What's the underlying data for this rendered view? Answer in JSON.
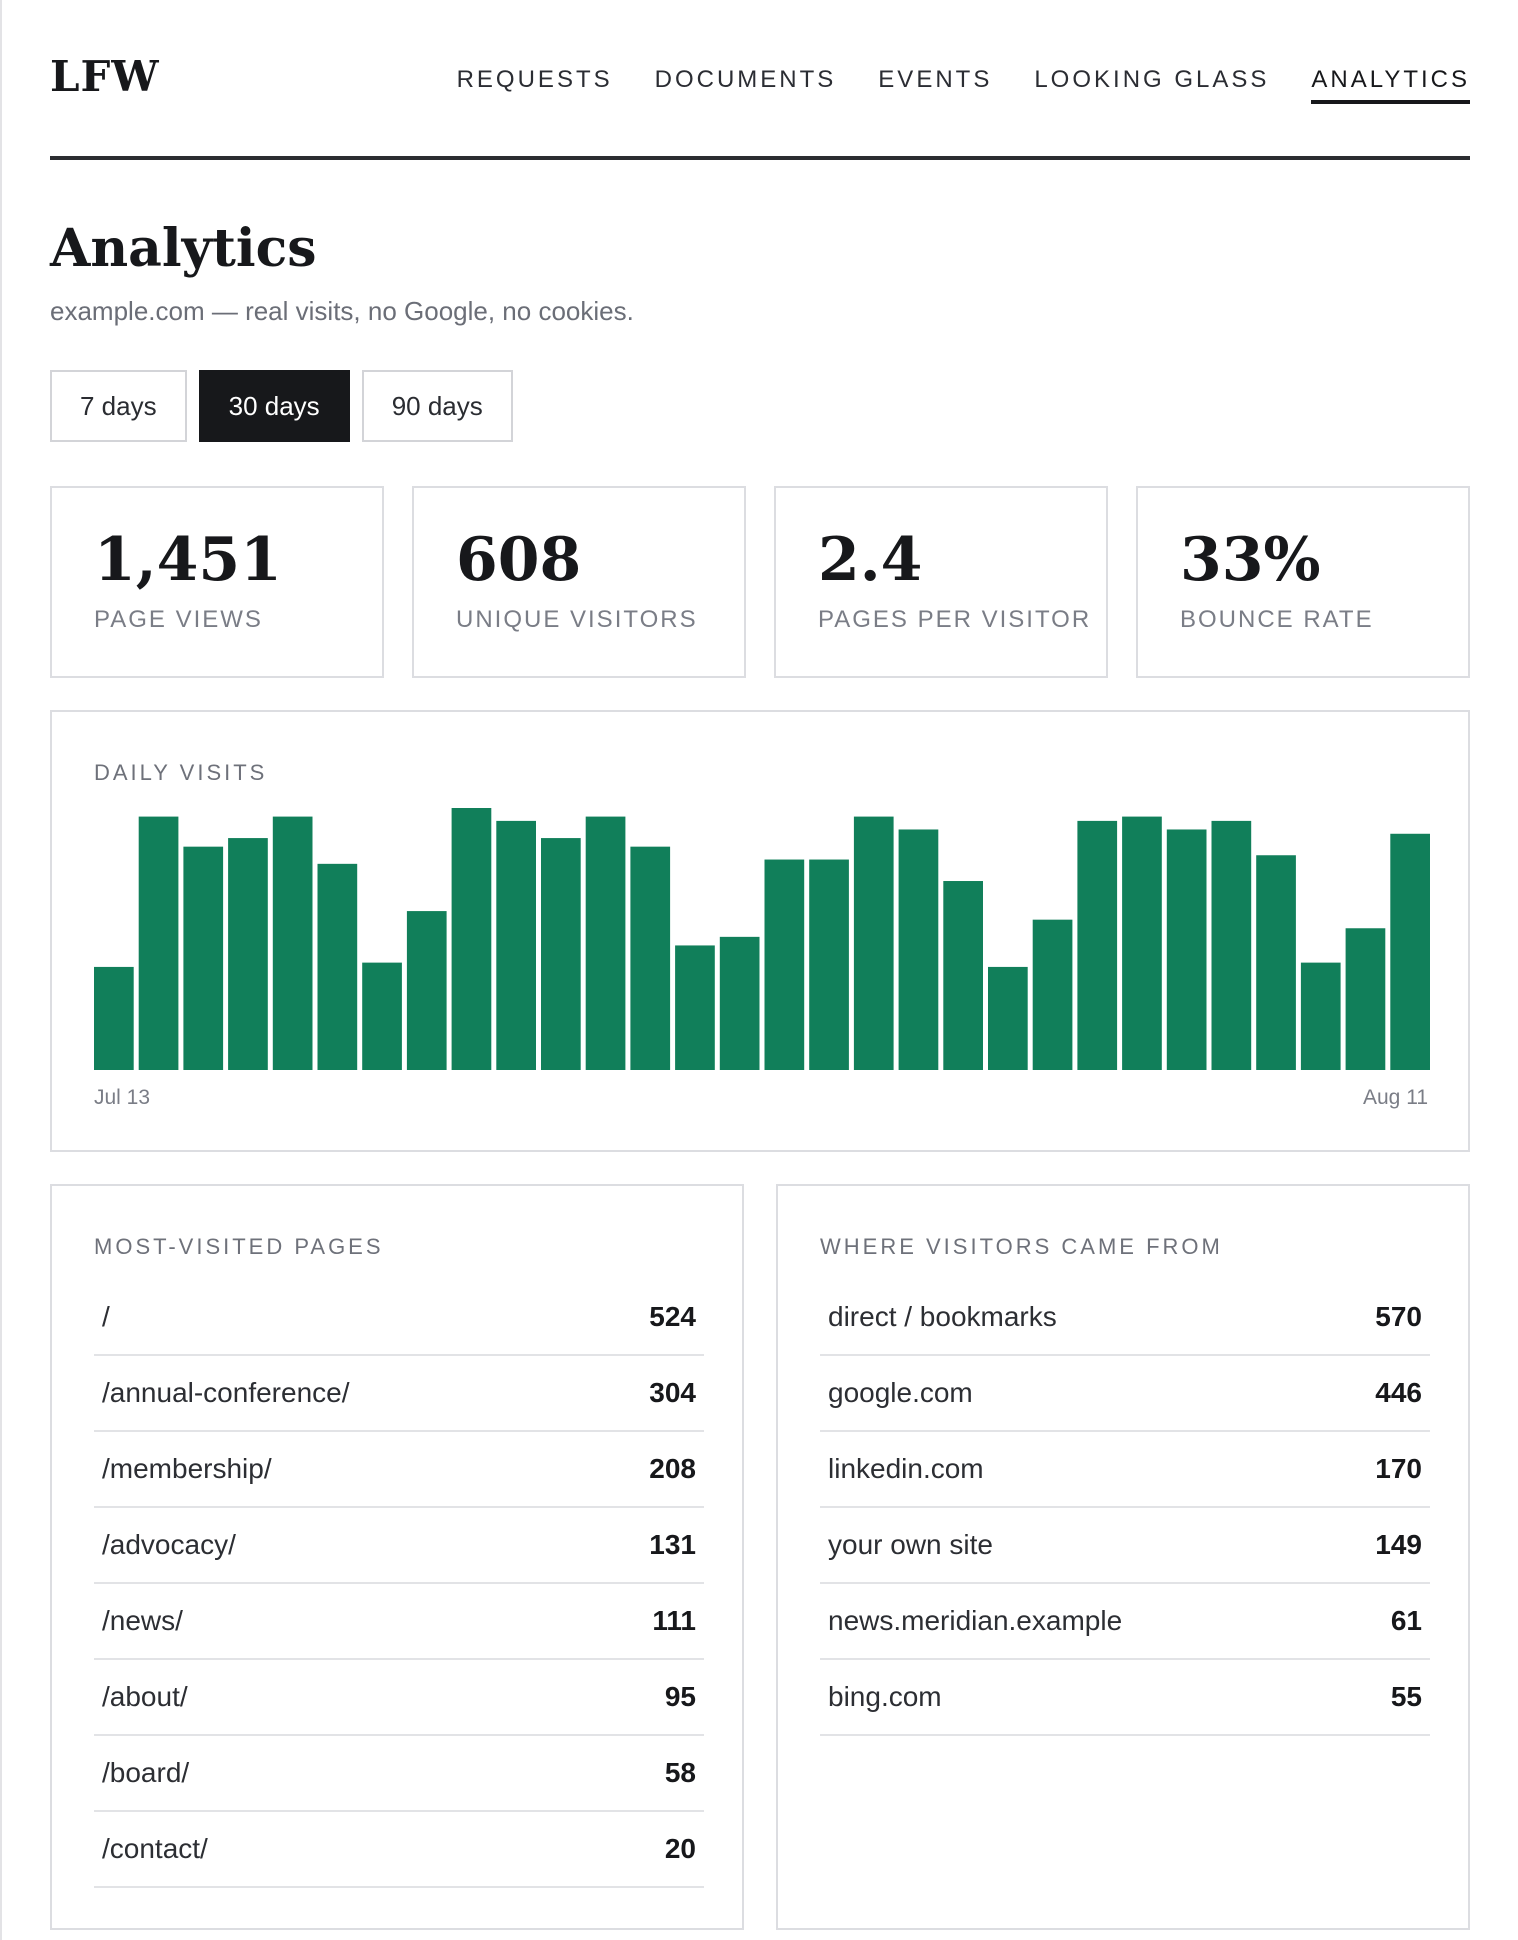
{
  "brand": "LFW",
  "nav": [
    {
      "label": "REQUESTS",
      "active": false
    },
    {
      "label": "DOCUMENTS",
      "active": false
    },
    {
      "label": "EVENTS",
      "active": false
    },
    {
      "label": "LOOKING GLASS",
      "active": false
    },
    {
      "label": "ANALYTICS",
      "active": true
    }
  ],
  "page": {
    "title": "Analytics",
    "subtitle": "example.com — real visits, no Google, no cookies."
  },
  "ranges": [
    {
      "label": "7 days",
      "active": false
    },
    {
      "label": "30 days",
      "active": true
    },
    {
      "label": "90 days",
      "active": false
    }
  ],
  "stats": [
    {
      "value": "1,451",
      "label": "PAGE VIEWS"
    },
    {
      "value": "608",
      "label": "UNIQUE VISITORS"
    },
    {
      "value": "2.4",
      "label": "PAGES PER VISITOR"
    },
    {
      "value": "33%",
      "label": "BOUNCE RATE"
    }
  ],
  "colors": {
    "bar": "#117f5a",
    "accent": "#17181b"
  },
  "chart_data": {
    "type": "bar",
    "title": "DAILY VISITS",
    "x_start_label": "Jul 13",
    "x_end_label": "Aug 11",
    "values": [
      24,
      59,
      52,
      54,
      59,
      48,
      25,
      37,
      61,
      58,
      54,
      59,
      52,
      29,
      31,
      49,
      49,
      59,
      56,
      44,
      24,
      35,
      58,
      59,
      56,
      58,
      50,
      25,
      33,
      55
    ],
    "ylim": [
      0,
      61
    ],
    "grid": false,
    "legend": "none"
  },
  "top_pages": {
    "title": "MOST-VISITED PAGES",
    "rows": [
      {
        "label": "/",
        "count": "524"
      },
      {
        "label": "/annual-conference/",
        "count": "304"
      },
      {
        "label": "/membership/",
        "count": "208"
      },
      {
        "label": "/advocacy/",
        "count": "131"
      },
      {
        "label": "/news/",
        "count": "111"
      },
      {
        "label": "/about/",
        "count": "95"
      },
      {
        "label": "/board/",
        "count": "58"
      },
      {
        "label": "/contact/",
        "count": "20"
      }
    ]
  },
  "referrers": {
    "title": "WHERE VISITORS CAME FROM",
    "rows": [
      {
        "label": "direct / bookmarks",
        "count": "570"
      },
      {
        "label": "google.com",
        "count": "446"
      },
      {
        "label": "linkedin.com",
        "count": "170"
      },
      {
        "label": "your own site",
        "count": "149"
      },
      {
        "label": "news.meridian.example",
        "count": "61"
      },
      {
        "label": "bing.com",
        "count": "55"
      }
    ]
  }
}
